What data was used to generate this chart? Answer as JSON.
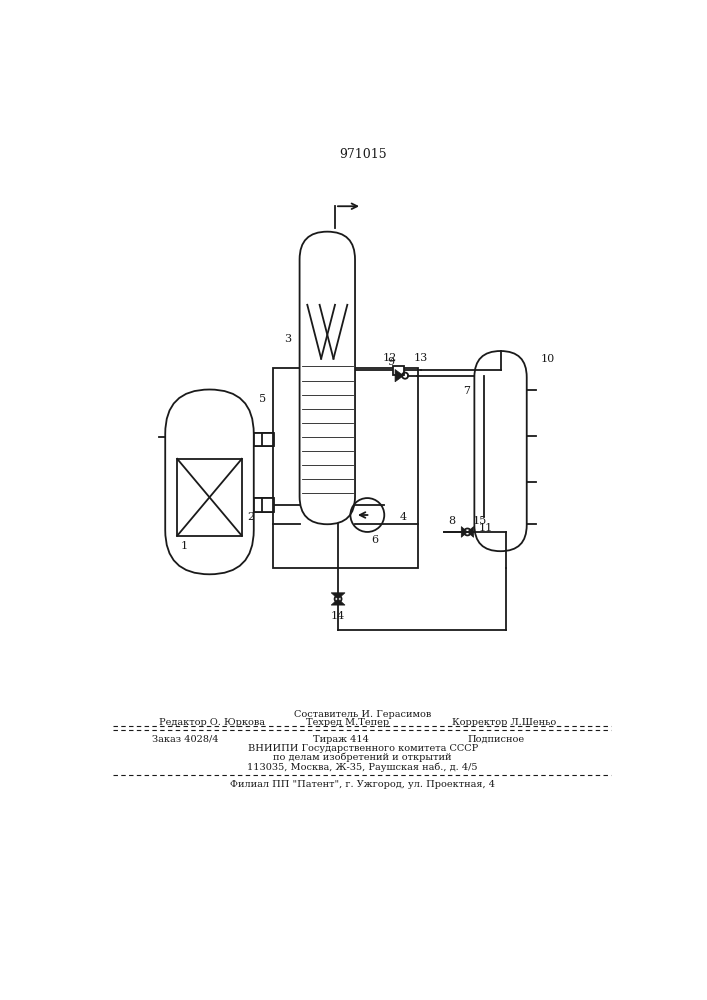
{
  "patent_number": "971015",
  "bg_color": "#ffffff",
  "line_color": "#1a1a1a",
  "lw": 1.3,
  "footer": {
    "line_sestavitel": "Составитель И. Герасимов",
    "line_redaktor": "Редактор О. Юркова",
    "line_tekhred": "Техред М.Тепер",
    "line_korrektor": "Корректор Л.Шеньо",
    "line_zakaz": "Заказ 4028/4",
    "line_tirazh": "Тираж 414",
    "line_podpisnoe": "Подписное",
    "line_vniip1": "ВНИИПИ Государственного комитета СССР",
    "line_vniip2": "по делам изобретений и открытий",
    "line_vniip3": "113035, Москва, Ж-35, Раушская наб., д. 4/5",
    "line_filial": "Филиал ПП \"Патент\", г. Ужгород, ул. Проектная, 4"
  }
}
